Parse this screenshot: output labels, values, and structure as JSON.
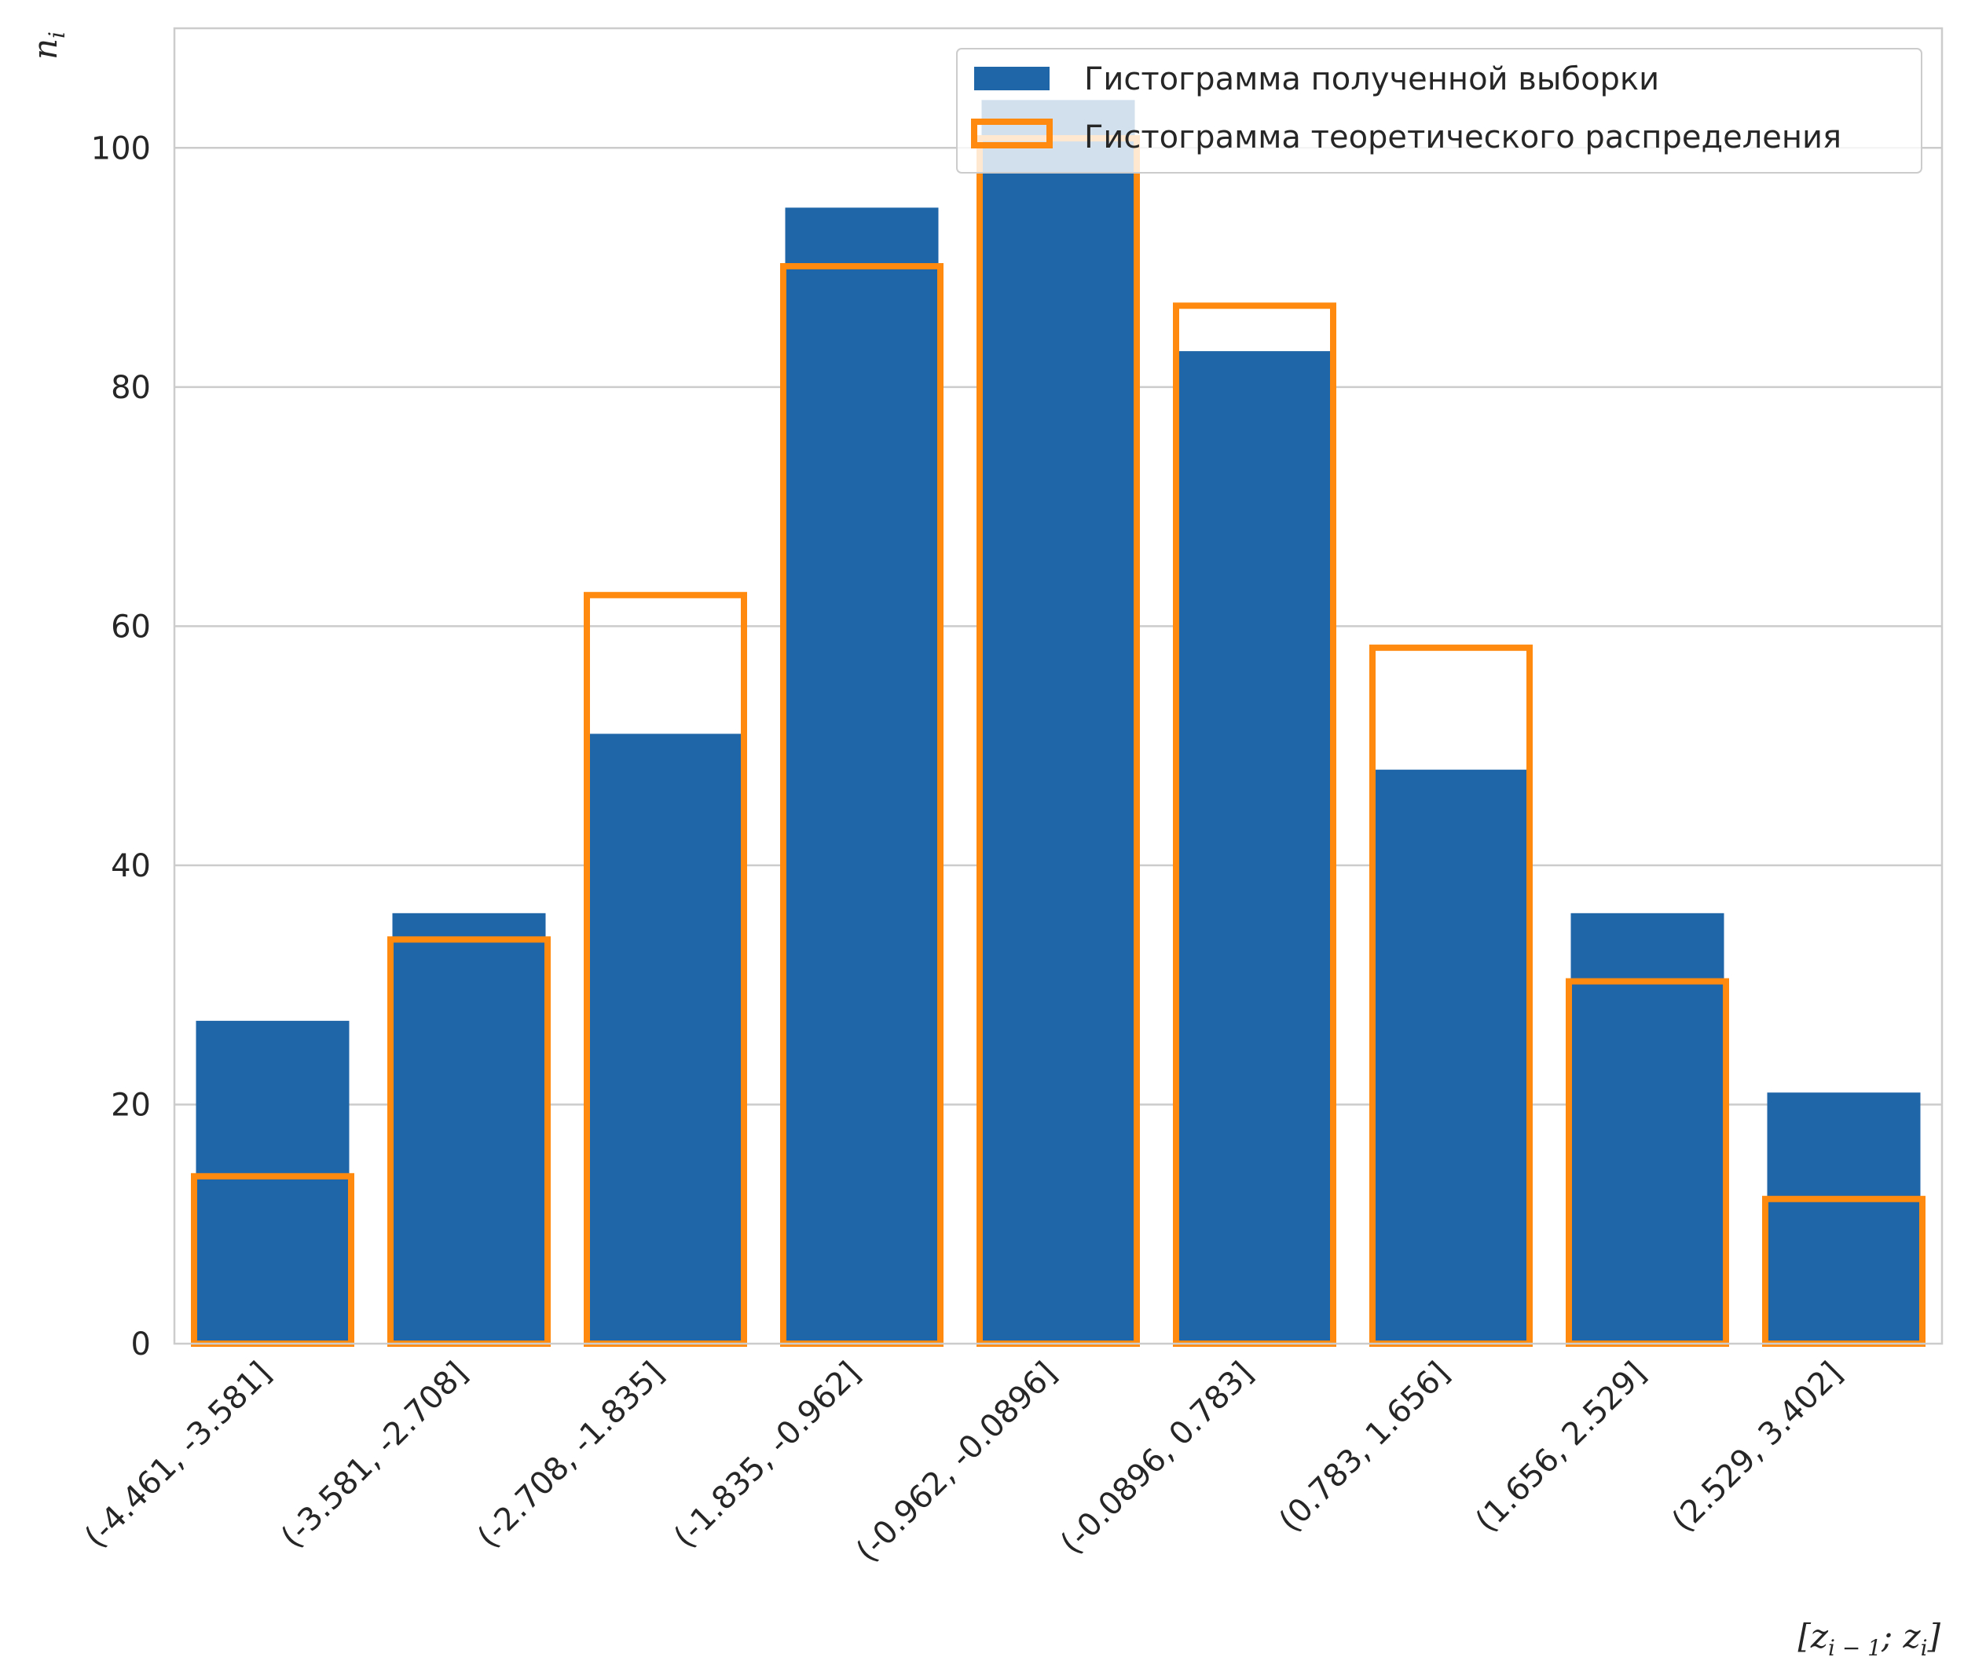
{
  "chart_data": {
    "type": "bar",
    "categories": [
      "(-4.461, -3.581]",
      "(-3.581, -2.708]",
      "(-2.708, -1.835]",
      "(-1.835, -0.962]",
      "(-0.962, -0.0896]",
      "(-0.0896, 0.783]",
      "(0.783, 1.656]",
      "(1.656, 2.529]",
      "(2.529, 3.402]"
    ],
    "series": [
      {
        "name": "Гистограмма полученной выборки",
        "style": "filled",
        "color": "#1f66a8",
        "values": [
          27,
          36,
          51,
          95,
          104,
          83,
          48,
          36,
          21
        ]
      },
      {
        "name": "Гистограмма теоретического распределения",
        "style": "outline",
        "color": "#ff8a0f",
        "values": [
          14.0,
          33.8,
          62.6,
          90.1,
          100.8,
          86.8,
          58.2,
          30.3,
          12.1
        ]
      }
    ],
    "xlabel": "[z_{i-1}; z_i]",
    "ylabel": "n_i",
    "ylim": [
      0,
      110
    ],
    "yticks": [
      0,
      20,
      40,
      60,
      80,
      100
    ],
    "grid": "y",
    "legend": "top-right"
  }
}
